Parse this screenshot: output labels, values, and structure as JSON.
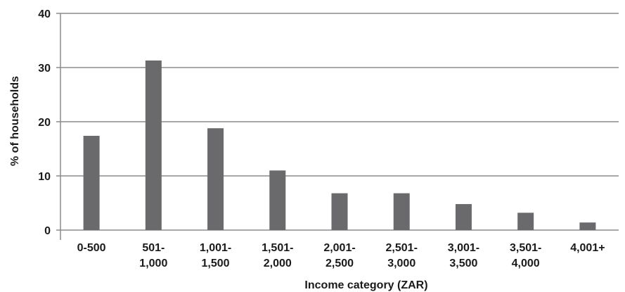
{
  "chart_data": {
    "type": "bar",
    "categories": [
      [
        "0-500"
      ],
      [
        "501-",
        "1,000"
      ],
      [
        "1,001-",
        "1,500"
      ],
      [
        "1,501-",
        "2,000"
      ],
      [
        "2,001-",
        "2,500"
      ],
      [
        "2,501-",
        "3,000"
      ],
      [
        "3,001-",
        "3,500"
      ],
      [
        "3,501-",
        "4,000"
      ],
      [
        "4,001+"
      ]
    ],
    "values": [
      17.4,
      31.3,
      18.8,
      11.0,
      6.8,
      6.8,
      4.8,
      3.2,
      1.4
    ],
    "xlabel": "Income category (ZAR)",
    "ylabel": "% of households",
    "ylim": [
      0,
      40
    ],
    "yticks": [
      0,
      10,
      20,
      30,
      40
    ],
    "grid": true,
    "bar_color": "#6a6a6d"
  }
}
